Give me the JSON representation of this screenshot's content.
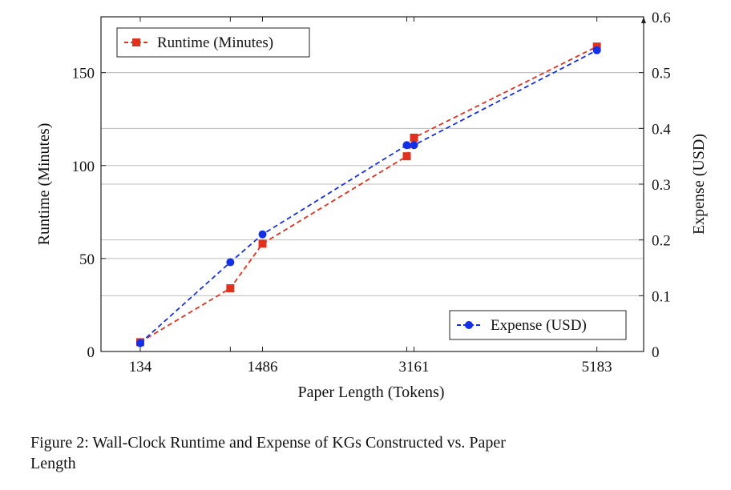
{
  "chart_data": {
    "type": "line",
    "title": "",
    "xlabel": "Paper Length (Tokens)",
    "ylabel_left": "Runtime (Minutes)",
    "ylabel_right": "Expense (USD)",
    "x_ticks": [
      134,
      1486,
      3161,
      5183
    ],
    "x_range": [
      -300,
      5700
    ],
    "y_left_range": [
      0,
      180
    ],
    "y_left_ticks": [
      0,
      50,
      100,
      150
    ],
    "y_right_range": [
      0,
      0.6
    ],
    "y_right_ticks": [
      0,
      0.1,
      0.2,
      0.3,
      0.4,
      0.5,
      0.6
    ],
    "grid": true,
    "series": [
      {
        "name": "Runtime (Minutes)",
        "axis": "left",
        "color": "#e0311f",
        "marker": "square",
        "legend_position": "top-left",
        "x": [
          134,
          1130,
          1486,
          3081,
          3161,
          5183
        ],
        "y": [
          5,
          34,
          58,
          105,
          115,
          164
        ]
      },
      {
        "name": "Expense (USD)",
        "axis": "right",
        "color": "#1430e6",
        "marker": "circle",
        "legend_position": "bottom-right",
        "x": [
          134,
          1130,
          1486,
          3081,
          3161,
          5183
        ],
        "y": [
          0.015,
          0.16,
          0.21,
          0.37,
          0.37,
          0.54
        ]
      }
    ]
  },
  "caption": {
    "line1": "Figure 2:  Wall-Clock Runtime and Expense of KGs Constructed vs.  Paper",
    "line2": "Length"
  }
}
